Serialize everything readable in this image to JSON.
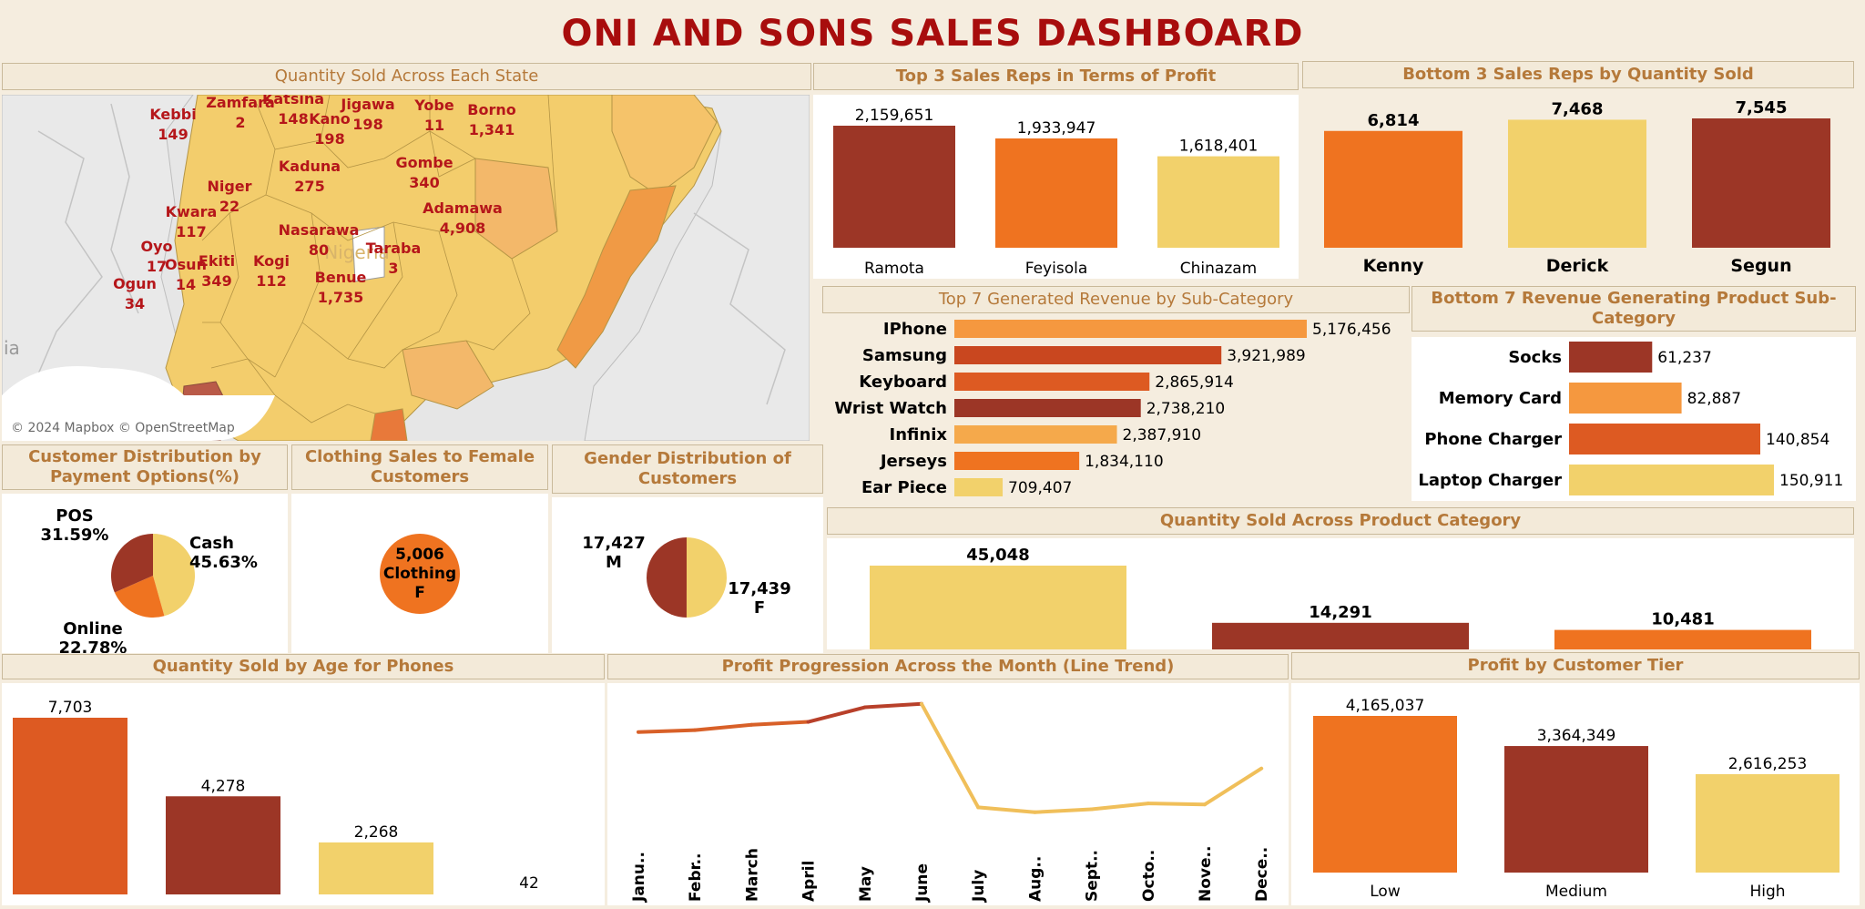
{
  "dashboard": {
    "title": "ONI AND SONS SALES DASHBOARD"
  },
  "map": {
    "title": "Quantity Sold Across Each State",
    "attribution": "© 2024 Mapbox © OpenStreetMap",
    "country_label": "Nigeria",
    "edge_label": "ia",
    "states": [
      {
        "name": "Kebbi",
        "value": "149"
      },
      {
        "name": "Zamfara",
        "value": "2"
      },
      {
        "name": "Katsina",
        "value": "148"
      },
      {
        "name": "Kano",
        "value": "198"
      },
      {
        "name": "Jigawa",
        "value": "198"
      },
      {
        "name": "Yobe",
        "value": "11"
      },
      {
        "name": "Borno",
        "value": "1,341"
      },
      {
        "name": "Kaduna",
        "value": "275"
      },
      {
        "name": "Gombe",
        "value": "340"
      },
      {
        "name": "Niger",
        "value": "22"
      },
      {
        "name": "Kwara",
        "value": "117"
      },
      {
        "name": "Adamawa",
        "value": "4,908"
      },
      {
        "name": "Nasarawa",
        "value": "80"
      },
      {
        "name": "Taraba",
        "value": "3"
      },
      {
        "name": "Oyo",
        "value": "17"
      },
      {
        "name": "Osun",
        "value": "14"
      },
      {
        "name": "Ekiti",
        "value": "349"
      },
      {
        "name": "Kogi",
        "value": "112"
      },
      {
        "name": "Benue",
        "value": "1,735"
      },
      {
        "name": "Ogun",
        "value": "34"
      }
    ]
  },
  "colors": {
    "dark": "#9c3626",
    "orange": "#ef7320",
    "yellow": "#f2d16b",
    "red_orange": "#c9471f",
    "burnt": "#dd5a22",
    "light_orange": "#f5a94b",
    "header_text": "#b5793a"
  },
  "chart_data": [
    {
      "id": "top3",
      "type": "bar",
      "title": "Top 3 Sales Reps in Terms of Profit",
      "categories": [
        "Ramota",
        "Feyisola",
        "Chinazam"
      ],
      "values": [
        2159651,
        1933947,
        1618401
      ],
      "labels": [
        "2,159,651",
        "1,933,947",
        "1,618,401"
      ]
    },
    {
      "id": "bottom3",
      "type": "bar",
      "title": "Bottom 3 Sales Reps by Quantity Sold",
      "categories": [
        "Kenny",
        "Derick",
        "Segun"
      ],
      "values": [
        6814,
        7468,
        7545
      ],
      "labels": [
        "6,814",
        "7,468",
        "7,545"
      ]
    },
    {
      "id": "top7",
      "type": "bar",
      "orientation": "horizontal",
      "title": "Top 7 Generated Revenue by Sub-Category",
      "categories": [
        "IPhone",
        "Samsung",
        "Keyboard",
        "Wrist Watch",
        "Infinix",
        "Jerseys",
        "Ear Piece"
      ],
      "values": [
        5176456,
        3921989,
        2865914,
        2738210,
        2387910,
        1834110,
        709407
      ],
      "labels": [
        "5,176,456",
        "3,921,989",
        "2,865,914",
        "2,738,210",
        "2,387,910",
        "1,834,110",
        "709,407"
      ]
    },
    {
      "id": "bottom7",
      "type": "bar",
      "orientation": "horizontal",
      "title": "Bottom 7 Revenue Generating Product Sub-Category",
      "categories": [
        "Socks",
        "Memory Card",
        "Phone Charger",
        "Laptop Charger"
      ],
      "values": [
        61237,
        82887,
        140854,
        150911
      ],
      "labels": [
        "61,237",
        "82,887",
        "140,854",
        "150,911"
      ]
    },
    {
      "id": "payment",
      "type": "pie",
      "title": "Customer Distribution by Payment Options(%)",
      "categories": [
        "Cash",
        "Online",
        "POS"
      ],
      "values": [
        45.63,
        22.78,
        31.59
      ],
      "labels": [
        "Cash\n45.63%",
        "Online\n22.78%",
        "POS\n31.59%"
      ]
    },
    {
      "id": "clothing",
      "type": "pie",
      "title": "Clothing Sales to Female Customers",
      "categories": [
        "Clothing F"
      ],
      "values": [
        5006
      ],
      "labels": [
        "5,006",
        "Clothing",
        "F"
      ]
    },
    {
      "id": "gender",
      "type": "pie",
      "title": "Gender Distribution of Customers",
      "categories": [
        "F",
        "M"
      ],
      "values": [
        17439,
        17427
      ],
      "labels": [
        "17,439\nF",
        "17,427\nM"
      ]
    },
    {
      "id": "category",
      "type": "bar",
      "title": "Quantity Sold Across Product Category",
      "values": [
        45048,
        14291,
        10481
      ],
      "labels": [
        "45,048",
        "14,291",
        "10,481"
      ]
    },
    {
      "id": "age",
      "type": "bar",
      "title": "Quantity Sold by Age for Phones",
      "values": [
        7703,
        4278,
        2268,
        42
      ],
      "labels": [
        "7,703",
        "4,278",
        "2,268",
        "42"
      ]
    },
    {
      "id": "profit_month",
      "type": "line",
      "title": "Profit Progression Across the Month (Line Trend)",
      "categories": [
        "Janu..",
        "Febr..",
        "March",
        "April",
        "May",
        "June",
        "July",
        "Aug..",
        "Sept..",
        "Octo..",
        "Nove..",
        "Dece.."
      ],
      "values": [
        1090,
        1110,
        1165,
        1195,
        1345,
        1380,
        315,
        265,
        295,
        355,
        345,
        715
      ]
    },
    {
      "id": "tier",
      "type": "bar",
      "title": "Profit by Customer Tier",
      "categories": [
        "Low",
        "Medium",
        "High"
      ],
      "values": [
        4165037,
        3364349,
        2616253
      ],
      "labels": [
        "4,165,037",
        "3,364,349",
        "2,616,253"
      ]
    }
  ]
}
